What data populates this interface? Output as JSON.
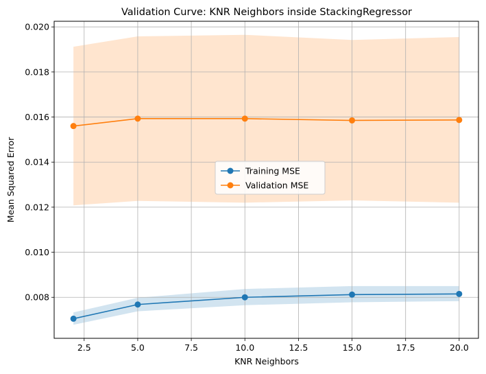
{
  "chart_data": {
    "type": "line",
    "title": "Validation Curve: KNR Neighbors inside StackingRegressor",
    "xlabel": "KNR Neighbors",
    "ylabel": "Mean Squared Error",
    "x": [
      2,
      5,
      10,
      15,
      20
    ],
    "xlim": [
      1.1,
      20.9
    ],
    "ylim": [
      0.00618,
      0.02025
    ],
    "xticks": [
      2.5,
      5.0,
      7.5,
      10.0,
      12.5,
      15.0,
      17.5,
      20.0
    ],
    "xtick_labels": [
      "2.5",
      "5.0",
      "7.5",
      "10.0",
      "12.5",
      "15.0",
      "17.5",
      "20.0"
    ],
    "yticks": [
      0.008,
      0.01,
      0.012,
      0.014,
      0.016,
      0.018,
      0.02
    ],
    "ytick_labels": [
      "0.008",
      "0.010",
      "0.012",
      "0.014",
      "0.016",
      "0.018",
      "0.020"
    ],
    "grid": true,
    "legend_position": "center",
    "series": [
      {
        "name": "Training MSE",
        "color": "#1f77b4",
        "band_color": "#1f77b4",
        "marker": "circle",
        "values": [
          0.00705,
          0.00768,
          0.008,
          0.00812,
          0.00815
        ],
        "band_lower": [
          0.00678,
          0.00738,
          0.00765,
          0.00778,
          0.00783
        ],
        "band_upper": [
          0.00733,
          0.00798,
          0.00837,
          0.0085,
          0.0085
        ]
      },
      {
        "name": "Validation MSE",
        "color": "#ff7f0e",
        "band_color": "#ff7f0e",
        "marker": "circle",
        "values": [
          0.0156,
          0.01593,
          0.01593,
          0.01585,
          0.01587
        ],
        "band_lower": [
          0.01208,
          0.01228,
          0.0122,
          0.0123,
          0.0122
        ],
        "band_upper": [
          0.01912,
          0.01958,
          0.01965,
          0.01942,
          0.01955
        ]
      }
    ]
  }
}
